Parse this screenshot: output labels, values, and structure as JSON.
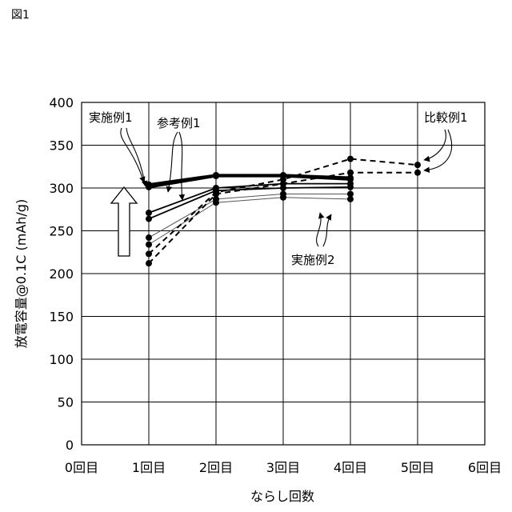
{
  "figure_label": "図1",
  "chart_data": {
    "type": "line",
    "title": "",
    "xlabel": "ならし回数",
    "ylabel": "放電容量@0.1C (mAh/g)",
    "xlim": [
      0,
      6
    ],
    "ylim": [
      0,
      400
    ],
    "grid": true,
    "x_ticks": [
      {
        "v": 0,
        "label": "0回目"
      },
      {
        "v": 1,
        "label": "1回目"
      },
      {
        "v": 2,
        "label": "2回目"
      },
      {
        "v": 3,
        "label": "3回目"
      },
      {
        "v": 4,
        "label": "4回目"
      },
      {
        "v": 5,
        "label": "5回目"
      },
      {
        "v": 6,
        "label": "6回目"
      }
    ],
    "y_ticks": [
      {
        "v": 0,
        "label": "0"
      },
      {
        "v": 50,
        "label": "50"
      },
      {
        "v": 100,
        "label": "100"
      },
      {
        "v": 150,
        "label": "150"
      },
      {
        "v": 200,
        "label": "200"
      },
      {
        "v": 250,
        "label": "250"
      },
      {
        "v": 300,
        "label": "300"
      },
      {
        "v": 350,
        "label": "350"
      },
      {
        "v": 400,
        "label": "400"
      }
    ],
    "series": [
      {
        "group": "実施例1",
        "style": "thick",
        "x": [
          1,
          2,
          3,
          4
        ],
        "y": [
          304,
          315,
          315,
          312
        ]
      },
      {
        "group": "実施例1",
        "style": "thick",
        "x": [
          1,
          2,
          3,
          4
        ],
        "y": [
          301,
          314,
          314,
          310
        ]
      },
      {
        "group": "参考例1",
        "style": "solid",
        "x": [
          1,
          2,
          3,
          4
        ],
        "y": [
          271,
          300,
          305,
          305
        ]
      },
      {
        "group": "参考例1",
        "style": "solid",
        "x": [
          1,
          2,
          3,
          4
        ],
        "y": [
          264,
          297,
          300,
          301
        ]
      },
      {
        "group": "実施例2",
        "style": "thin",
        "x": [
          1,
          2,
          3,
          4
        ],
        "y": [
          242,
          287,
          293,
          293
        ]
      },
      {
        "group": "実施例2",
        "style": "thin",
        "x": [
          1,
          2,
          3,
          4
        ],
        "y": [
          234,
          283,
          289,
          287
        ]
      },
      {
        "group": "比較例1",
        "style": "dashed",
        "x": [
          1,
          2,
          3,
          4,
          5
        ],
        "y": [
          223,
          295,
          310,
          334,
          327
        ]
      },
      {
        "group": "比較例1",
        "style": "dashed",
        "x": [
          1,
          2,
          3,
          4,
          5
        ],
        "y": [
          212,
          293,
          305,
          318,
          318
        ]
      }
    ],
    "annotations": [
      {
        "text": "実施例1",
        "target_group": "実施例1"
      },
      {
        "text": "参考例1",
        "target_group": "参考例1"
      },
      {
        "text": "実施例2",
        "target_group": "実施例2"
      },
      {
        "text": "比較例1",
        "target_group": "比較例1"
      }
    ]
  }
}
